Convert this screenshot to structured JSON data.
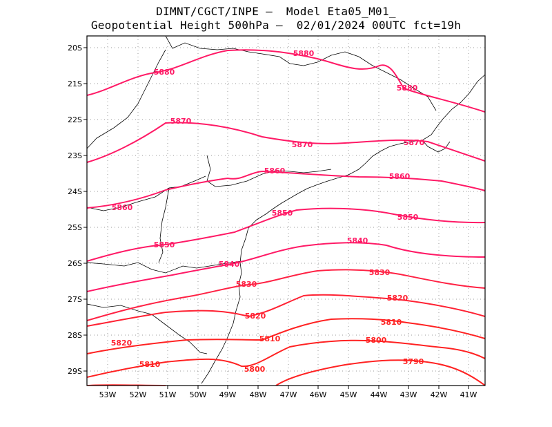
{
  "header": {
    "line1": "DIMNT/CGCT/INPE –  Model Eta05_M01_",
    "line2": "Geopotential Height 500hPa –  02/01/2024 00UTC fct=19h"
  },
  "axes": {
    "lat_labels": [
      "20S",
      "21S",
      "22S",
      "23S",
      "24S",
      "25S",
      "26S",
      "27S",
      "28S",
      "29S"
    ],
    "lon_labels": [
      "53W",
      "52W",
      "51W",
      "50W",
      "49W",
      "48W",
      "47W",
      "46W",
      "45W",
      "44W",
      "43W",
      "42W",
      "41W"
    ]
  },
  "colors": {
    "magenta": "#ff1a66",
    "red": "#ff2222",
    "coast": "#000000",
    "grid": "#9a9a9a"
  },
  "contours": [
    {
      "level": "5880",
      "labels": [
        "5880",
        "5880",
        "5880"
      ]
    },
    {
      "level": "5870",
      "labels": [
        "5870",
        "5870",
        "5870"
      ]
    },
    {
      "level": "5860",
      "labels": [
        "5860",
        "5860",
        "5860"
      ]
    },
    {
      "level": "5850",
      "labels": [
        "5850",
        "5850",
        "5850"
      ]
    },
    {
      "level": "5840",
      "labels": [
        "5840",
        "5840"
      ]
    },
    {
      "level": "5830",
      "labels": [
        "5830",
        "5830"
      ]
    },
    {
      "level": "5820",
      "labels": [
        "5820",
        "5820",
        "5820"
      ]
    },
    {
      "level": "5810",
      "labels": [
        "5810",
        "5810",
        "5810"
      ]
    },
    {
      "level": "5800",
      "labels": [
        "5800",
        "5800"
      ]
    },
    {
      "level": "5790",
      "labels": [
        "5790"
      ]
    }
  ]
}
